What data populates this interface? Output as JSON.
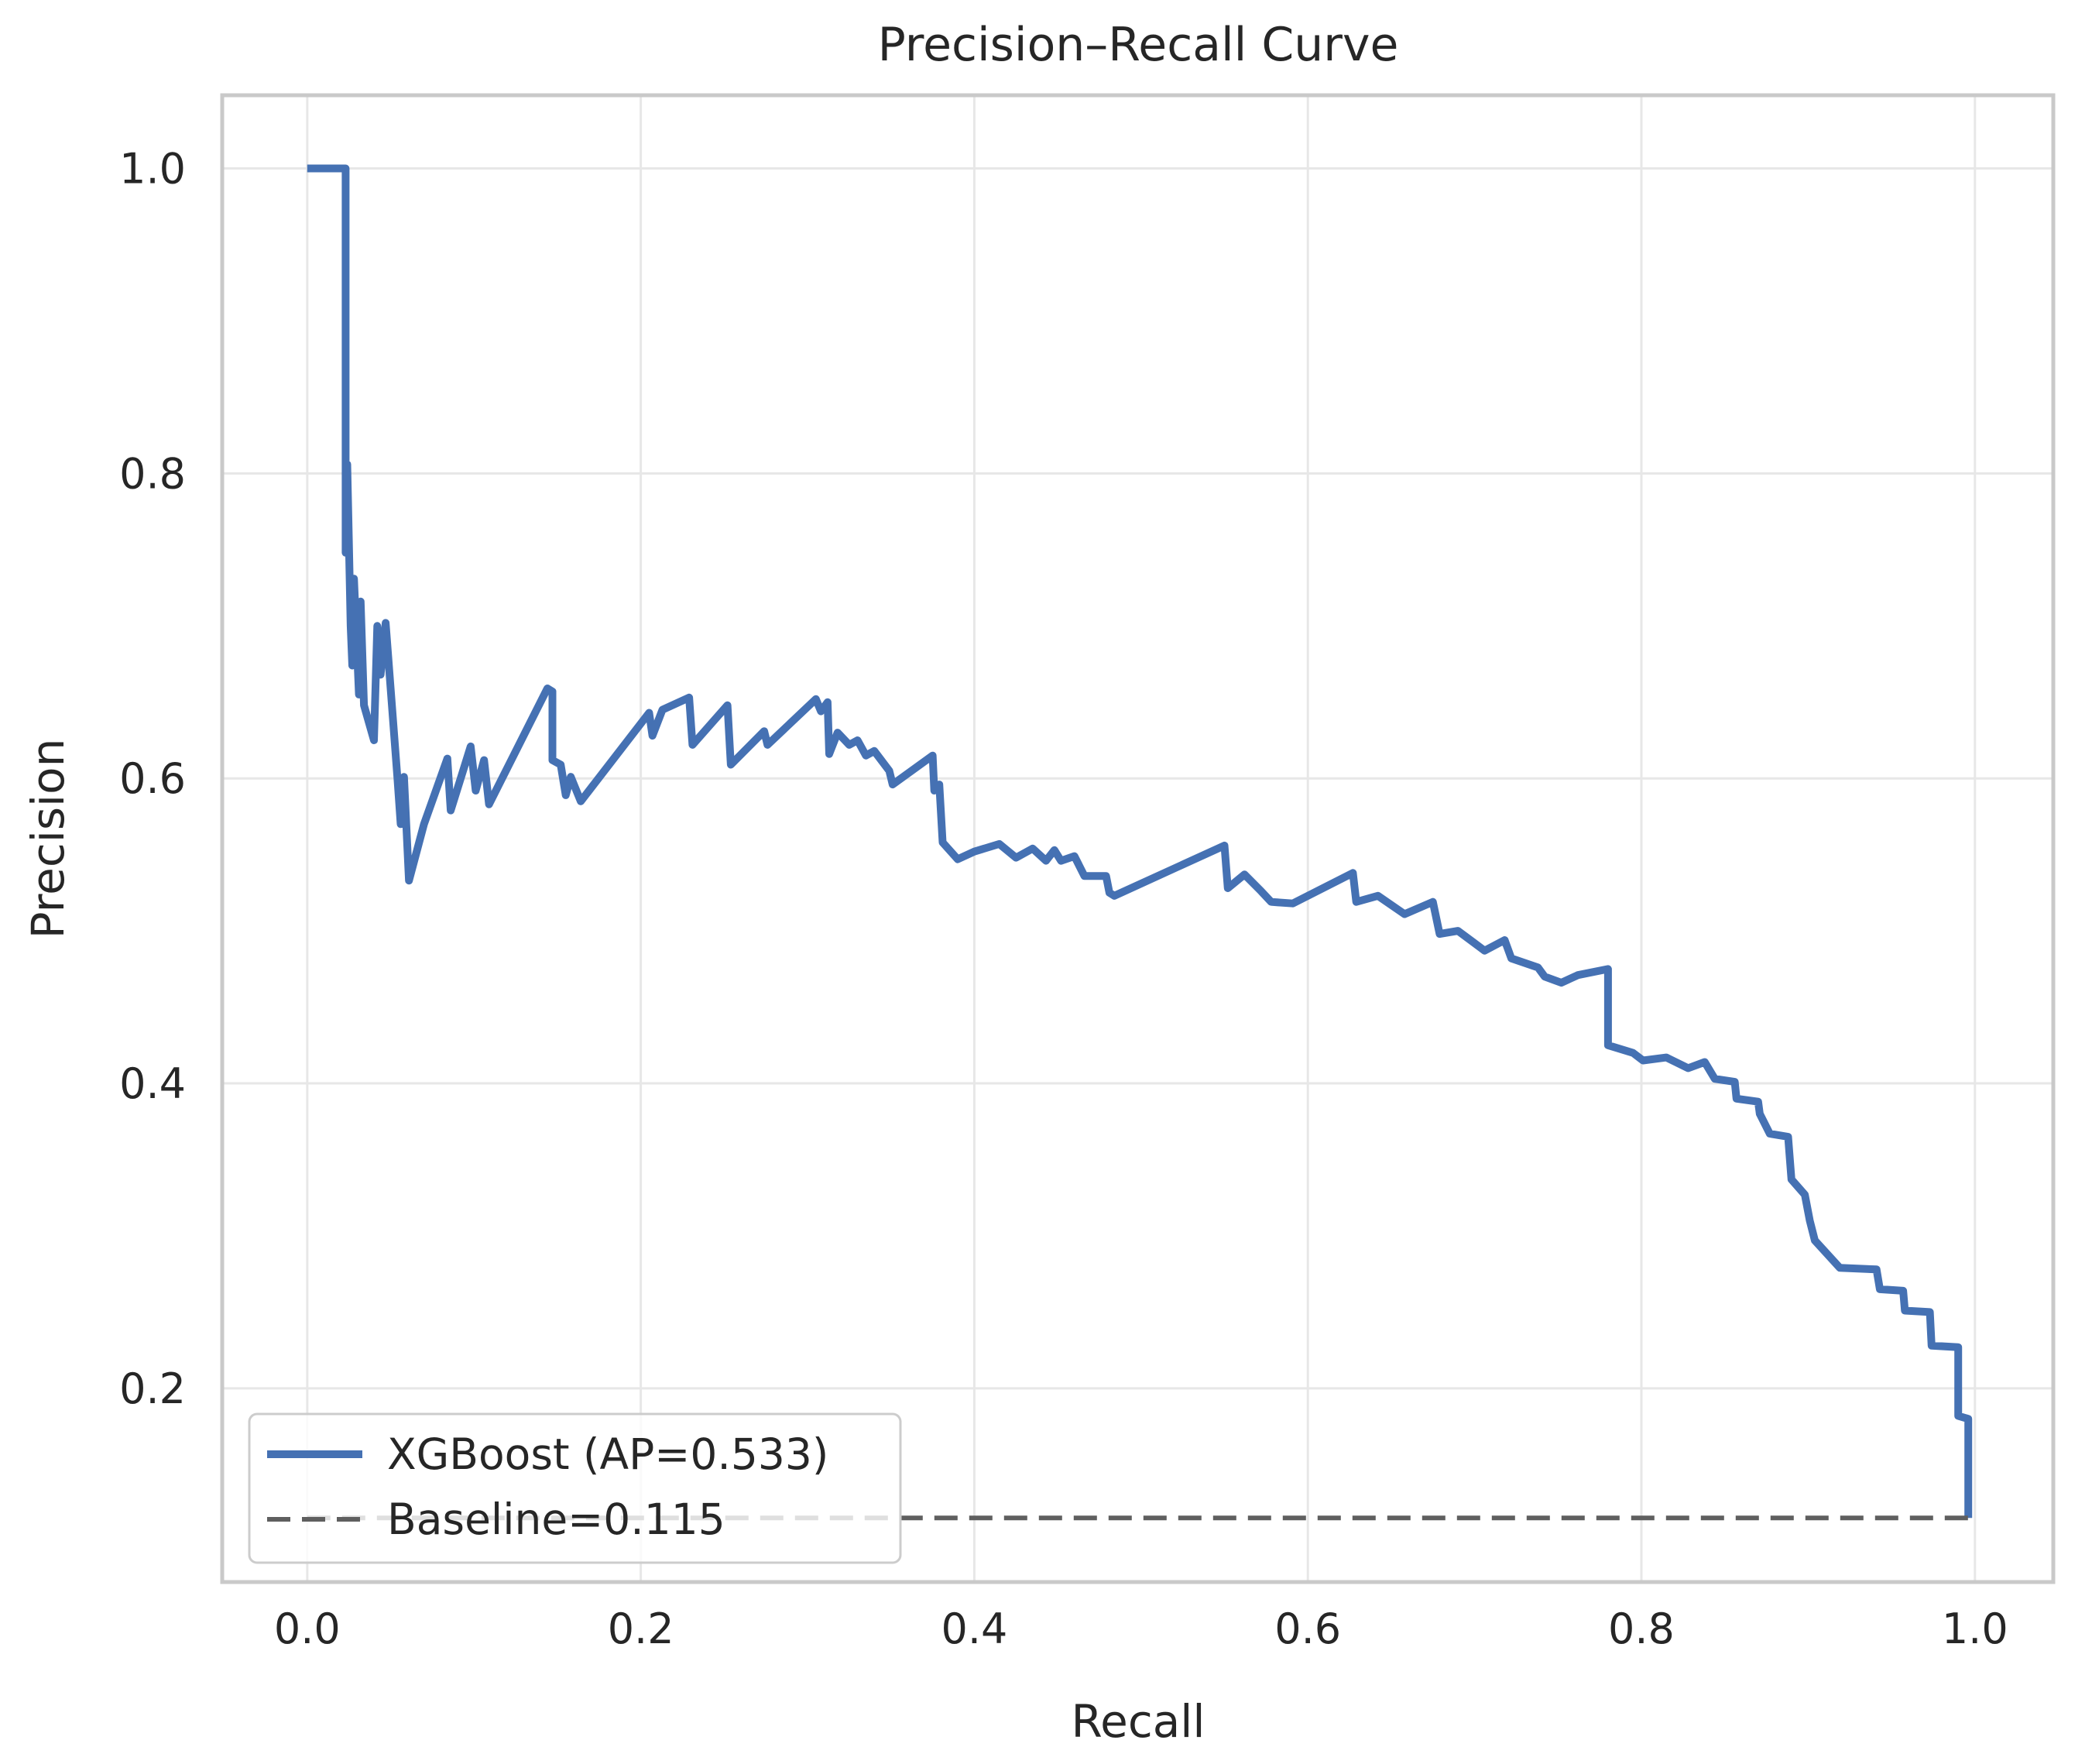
{
  "title": "Precision–Recall Curve",
  "axes": {
    "xlabel": "Recall",
    "ylabel": "Precision",
    "x_tick_labels": [
      "0.0",
      "0.2",
      "0.4",
      "0.6",
      "0.8",
      "1.0"
    ],
    "y_tick_labels": [
      "0.2",
      "0.4",
      "0.6",
      "0.8",
      "1.0"
    ]
  },
  "legend": {
    "items": [
      {
        "label": "XGBoost (AP=0.533)",
        "style": "solid",
        "color": "#4571B3"
      },
      {
        "label": "Baseline=0.115",
        "style": "dashed",
        "color": "#5F5F5F"
      }
    ]
  },
  "colors": {
    "curve": "#4571B3",
    "baseline": "#5F5F5F",
    "grid": "#E7E7E7",
    "spine": "#C9C9C9",
    "text": "#262626",
    "legend_border": "#CCCCCC",
    "background": "#FFFFFF"
  },
  "chart_data": {
    "type": "line",
    "title": "Precision–Recall Curve",
    "xlabel": "Recall",
    "ylabel": "Precision",
    "xlim": [
      -0.051,
      1.047
    ],
    "ylim": [
      0.073,
      1.048
    ],
    "x_ticks": [
      0.0,
      0.2,
      0.4,
      0.6,
      0.8,
      1.0
    ],
    "y_ticks": [
      0.2,
      0.4,
      0.6,
      0.8,
      1.0
    ],
    "grid": true,
    "legend_position": "lower left",
    "ap": 0.533,
    "baseline": 0.115,
    "series": [
      {
        "name": "XGBoost (AP=0.533)",
        "color": "#4571B3",
        "width": 10,
        "dashed": false,
        "points": [
          [
            0.0,
            1.0
          ],
          [
            0.023,
            1.0
          ],
          [
            0.023,
            0.748
          ],
          [
            0.024,
            0.806
          ],
          [
            0.026,
            0.7
          ],
          [
            0.027,
            0.674
          ],
          [
            0.028,
            0.731
          ],
          [
            0.031,
            0.655
          ],
          [
            0.032,
            0.716
          ],
          [
            0.034,
            0.648
          ],
          [
            0.04,
            0.625
          ],
          [
            0.042,
            0.7
          ],
          [
            0.044,
            0.668
          ],
          [
            0.047,
            0.702
          ],
          [
            0.054,
            0.601
          ],
          [
            0.056,
            0.57
          ],
          [
            0.058,
            0.601
          ],
          [
            0.061,
            0.533
          ],
          [
            0.07,
            0.57
          ],
          [
            0.084,
            0.613
          ],
          [
            0.086,
            0.579
          ],
          [
            0.098,
            0.621
          ],
          [
            0.101,
            0.592
          ],
          [
            0.106,
            0.612
          ],
          [
            0.109,
            0.583
          ],
          [
            0.144,
            0.659
          ],
          [
            0.147,
            0.657
          ],
          [
            0.147,
            0.612
          ],
          [
            0.152,
            0.609
          ],
          [
            0.155,
            0.589
          ],
          [
            0.158,
            0.601
          ],
          [
            0.164,
            0.585
          ],
          [
            0.205,
            0.643
          ],
          [
            0.207,
            0.628
          ],
          [
            0.213,
            0.645
          ],
          [
            0.229,
            0.653
          ],
          [
            0.231,
            0.622
          ],
          [
            0.252,
            0.648
          ],
          [
            0.254,
            0.609
          ],
          [
            0.274,
            0.631
          ],
          [
            0.276,
            0.622
          ],
          [
            0.305,
            0.652
          ],
          [
            0.308,
            0.644
          ],
          [
            0.312,
            0.65
          ],
          [
            0.313,
            0.616
          ],
          [
            0.318,
            0.63
          ],
          [
            0.325,
            0.622
          ],
          [
            0.33,
            0.625
          ],
          [
            0.335,
            0.615
          ],
          [
            0.34,
            0.618
          ],
          [
            0.349,
            0.605
          ],
          [
            0.351,
            0.596
          ],
          [
            0.375,
            0.615
          ],
          [
            0.376,
            0.592
          ],
          [
            0.379,
            0.596
          ],
          [
            0.381,
            0.558
          ],
          [
            0.39,
            0.547
          ],
          [
            0.4,
            0.552
          ],
          [
            0.415,
            0.557
          ],
          [
            0.425,
            0.548
          ],
          [
            0.435,
            0.554
          ],
          [
            0.443,
            0.546
          ],
          [
            0.448,
            0.553
          ],
          [
            0.452,
            0.546
          ],
          [
            0.46,
            0.549
          ],
          [
            0.466,
            0.536
          ],
          [
            0.479,
            0.536
          ],
          [
            0.481,
            0.525
          ],
          [
            0.484,
            0.523
          ],
          [
            0.55,
            0.556
          ],
          [
            0.552,
            0.528
          ],
          [
            0.562,
            0.537
          ],
          [
            0.572,
            0.526
          ],
          [
            0.578,
            0.519
          ],
          [
            0.591,
            0.518
          ],
          [
            0.627,
            0.538
          ],
          [
            0.629,
            0.519
          ],
          [
            0.642,
            0.523
          ],
          [
            0.658,
            0.511
          ],
          [
            0.675,
            0.519
          ],
          [
            0.679,
            0.498
          ],
          [
            0.69,
            0.5
          ],
          [
            0.706,
            0.487
          ],
          [
            0.718,
            0.494
          ],
          [
            0.722,
            0.482
          ],
          [
            0.738,
            0.476
          ],
          [
            0.742,
            0.47
          ],
          [
            0.752,
            0.466
          ],
          [
            0.762,
            0.471
          ],
          [
            0.78,
            0.475
          ],
          [
            0.78,
            0.425
          ],
          [
            0.795,
            0.42
          ],
          [
            0.801,
            0.415
          ],
          [
            0.815,
            0.417
          ],
          [
            0.828,
            0.41
          ],
          [
            0.838,
            0.414
          ],
          [
            0.844,
            0.403
          ],
          [
            0.856,
            0.401
          ],
          [
            0.857,
            0.39
          ],
          [
            0.87,
            0.388
          ],
          [
            0.871,
            0.38
          ],
          [
            0.877,
            0.367
          ],
          [
            0.888,
            0.365
          ],
          [
            0.89,
            0.337
          ],
          [
            0.898,
            0.327
          ],
          [
            0.901,
            0.31
          ],
          [
            0.904,
            0.297
          ],
          [
            0.919,
            0.279
          ],
          [
            0.941,
            0.278
          ],
          [
            0.943,
            0.265
          ],
          [
            0.957,
            0.264
          ],
          [
            0.958,
            0.251
          ],
          [
            0.973,
            0.25
          ],
          [
            0.974,
            0.228
          ],
          [
            0.99,
            0.227
          ],
          [
            0.99,
            0.182
          ],
          [
            0.996,
            0.18
          ],
          [
            0.996,
            0.115
          ]
        ]
      },
      {
        "name": "Baseline=0.115",
        "color": "#5F5F5F",
        "width": 6,
        "dashed": true,
        "points": [
          [
            0.0,
            0.115
          ],
          [
            0.997,
            0.115
          ]
        ]
      }
    ]
  }
}
